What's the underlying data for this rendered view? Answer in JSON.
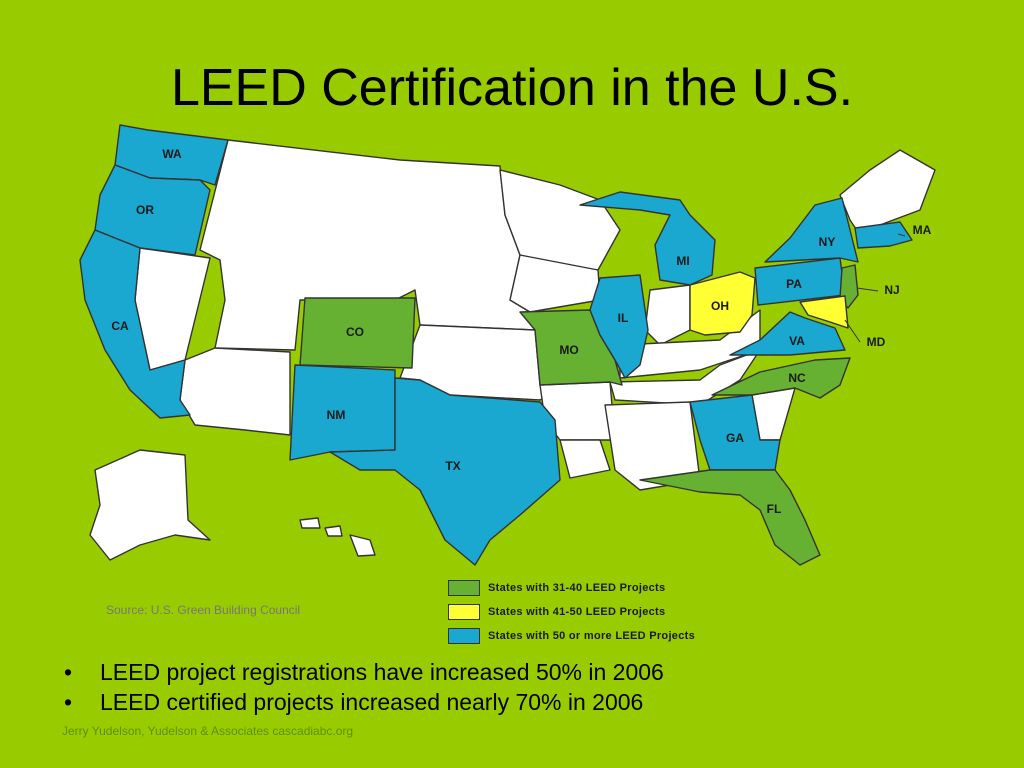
{
  "title": "LEED Certification in the U.S.",
  "colors": {
    "background": "#99cc00",
    "tier_31_40": "#66b032",
    "tier_41_50": "#ffff33",
    "tier_50_plus": "#1aa7d0",
    "other_states": "#ffffff"
  },
  "states": [
    {
      "abbr": "WA",
      "tier": "50_plus"
    },
    {
      "abbr": "OR",
      "tier": "50_plus"
    },
    {
      "abbr": "CA",
      "tier": "50_plus"
    },
    {
      "abbr": "CO",
      "tier": "31_40"
    },
    {
      "abbr": "NM",
      "tier": "50_plus"
    },
    {
      "abbr": "TX",
      "tier": "50_plus"
    },
    {
      "abbr": "MO",
      "tier": "31_40"
    },
    {
      "abbr": "IL",
      "tier": "50_plus"
    },
    {
      "abbr": "MI",
      "tier": "50_plus"
    },
    {
      "abbr": "OH",
      "tier": "41_50"
    },
    {
      "abbr": "PA",
      "tier": "50_plus"
    },
    {
      "abbr": "NY",
      "tier": "50_plus"
    },
    {
      "abbr": "MA",
      "tier": "50_plus"
    },
    {
      "abbr": "NJ",
      "tier": "31_40"
    },
    {
      "abbr": "MD",
      "tier": "41_50"
    },
    {
      "abbr": "VA",
      "tier": "50_plus"
    },
    {
      "abbr": "NC",
      "tier": "31_40"
    },
    {
      "abbr": "GA",
      "tier": "50_plus"
    },
    {
      "abbr": "FL",
      "tier": "31_40"
    }
  ],
  "legend": [
    {
      "tier": "31_40",
      "label": "States with 31-40 LEED Projects"
    },
    {
      "tier": "41_50",
      "label": "States with 41-50 LEED Projects"
    },
    {
      "tier": "50_plus",
      "label": "States with 50 or more LEED Projects"
    }
  ],
  "source": "Source: U.S. Green Building Council",
  "bullets": [
    "LEED project registrations have increased 50% in 2006",
    "LEED certified projects increased nearly 70% in 2006"
  ],
  "bullet_char": "•",
  "footer": "Jerry Yudelson, Yudelson & Associates cascadiabc.org"
}
